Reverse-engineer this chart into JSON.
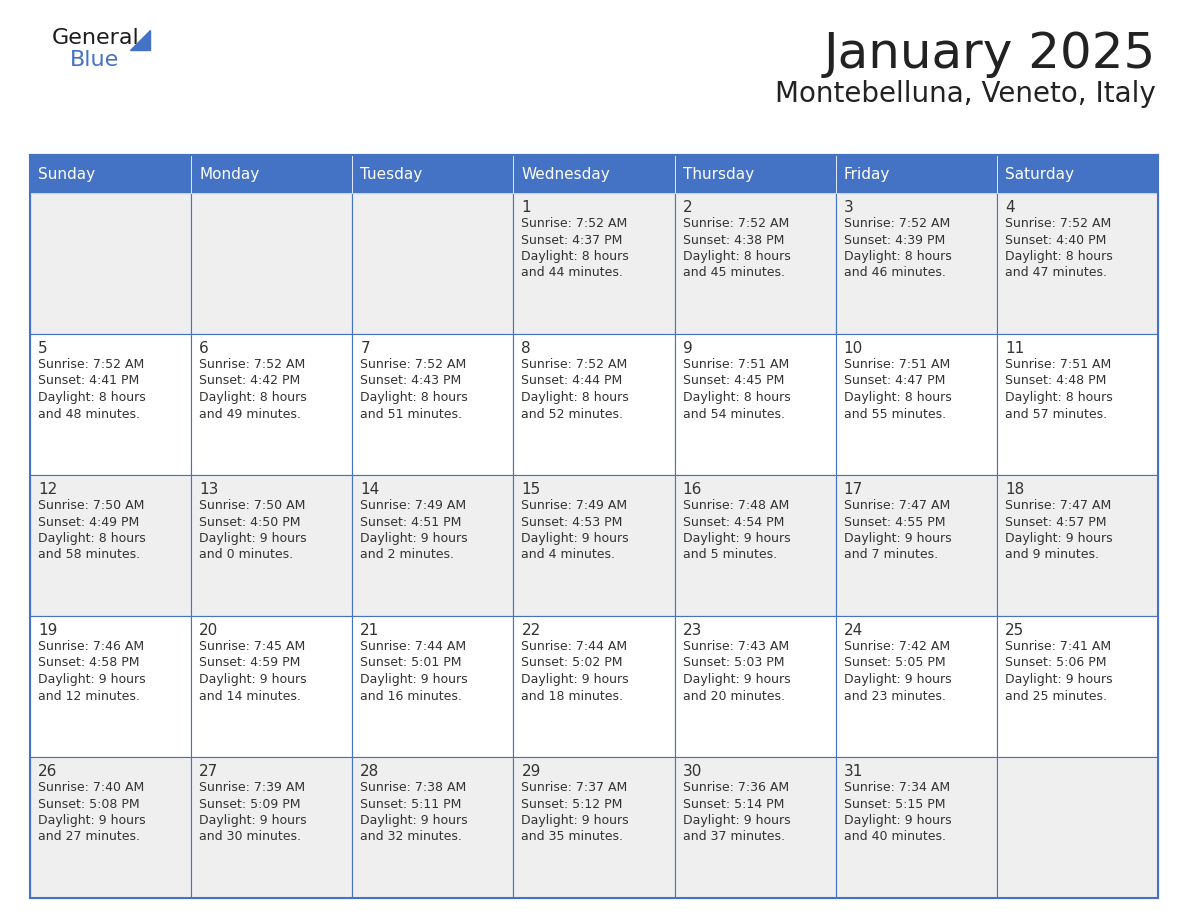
{
  "title": "January 2025",
  "subtitle": "Montebelluna, Veneto, Italy",
  "days_of_week": [
    "Sunday",
    "Monday",
    "Tuesday",
    "Wednesday",
    "Thursday",
    "Friday",
    "Saturday"
  ],
  "header_bg_color": "#4472C4",
  "header_text_color": "#FFFFFF",
  "cell_bg_color_even": "#EFEFEF",
  "cell_bg_color_odd": "#FFFFFF",
  "grid_line_color": "#4472C4",
  "title_color": "#222222",
  "subtitle_color": "#222222",
  "text_color": "#333333",
  "day_number_color": "#333333",
  "calendar_data": [
    {
      "day": 1,
      "col": 3,
      "row": 0,
      "sunrise": "7:52 AM",
      "sunset": "4:37 PM",
      "daylight_hours": 8,
      "daylight_minutes": 44
    },
    {
      "day": 2,
      "col": 4,
      "row": 0,
      "sunrise": "7:52 AM",
      "sunset": "4:38 PM",
      "daylight_hours": 8,
      "daylight_minutes": 45
    },
    {
      "day": 3,
      "col": 5,
      "row": 0,
      "sunrise": "7:52 AM",
      "sunset": "4:39 PM",
      "daylight_hours": 8,
      "daylight_minutes": 46
    },
    {
      "day": 4,
      "col": 6,
      "row": 0,
      "sunrise": "7:52 AM",
      "sunset": "4:40 PM",
      "daylight_hours": 8,
      "daylight_minutes": 47
    },
    {
      "day": 5,
      "col": 0,
      "row": 1,
      "sunrise": "7:52 AM",
      "sunset": "4:41 PM",
      "daylight_hours": 8,
      "daylight_minutes": 48
    },
    {
      "day": 6,
      "col": 1,
      "row": 1,
      "sunrise": "7:52 AM",
      "sunset": "4:42 PM",
      "daylight_hours": 8,
      "daylight_minutes": 49
    },
    {
      "day": 7,
      "col": 2,
      "row": 1,
      "sunrise": "7:52 AM",
      "sunset": "4:43 PM",
      "daylight_hours": 8,
      "daylight_minutes": 51
    },
    {
      "day": 8,
      "col": 3,
      "row": 1,
      "sunrise": "7:52 AM",
      "sunset": "4:44 PM",
      "daylight_hours": 8,
      "daylight_minutes": 52
    },
    {
      "day": 9,
      "col": 4,
      "row": 1,
      "sunrise": "7:51 AM",
      "sunset": "4:45 PM",
      "daylight_hours": 8,
      "daylight_minutes": 54
    },
    {
      "day": 10,
      "col": 5,
      "row": 1,
      "sunrise": "7:51 AM",
      "sunset": "4:47 PM",
      "daylight_hours": 8,
      "daylight_minutes": 55
    },
    {
      "day": 11,
      "col": 6,
      "row": 1,
      "sunrise": "7:51 AM",
      "sunset": "4:48 PM",
      "daylight_hours": 8,
      "daylight_minutes": 57
    },
    {
      "day": 12,
      "col": 0,
      "row": 2,
      "sunrise": "7:50 AM",
      "sunset": "4:49 PM",
      "daylight_hours": 8,
      "daylight_minutes": 58
    },
    {
      "day": 13,
      "col": 1,
      "row": 2,
      "sunrise": "7:50 AM",
      "sunset": "4:50 PM",
      "daylight_hours": 9,
      "daylight_minutes": 0
    },
    {
      "day": 14,
      "col": 2,
      "row": 2,
      "sunrise": "7:49 AM",
      "sunset": "4:51 PM",
      "daylight_hours": 9,
      "daylight_minutes": 2
    },
    {
      "day": 15,
      "col": 3,
      "row": 2,
      "sunrise": "7:49 AM",
      "sunset": "4:53 PM",
      "daylight_hours": 9,
      "daylight_minutes": 4
    },
    {
      "day": 16,
      "col": 4,
      "row": 2,
      "sunrise": "7:48 AM",
      "sunset": "4:54 PM",
      "daylight_hours": 9,
      "daylight_minutes": 5
    },
    {
      "day": 17,
      "col": 5,
      "row": 2,
      "sunrise": "7:47 AM",
      "sunset": "4:55 PM",
      "daylight_hours": 9,
      "daylight_minutes": 7
    },
    {
      "day": 18,
      "col": 6,
      "row": 2,
      "sunrise": "7:47 AM",
      "sunset": "4:57 PM",
      "daylight_hours": 9,
      "daylight_minutes": 9
    },
    {
      "day": 19,
      "col": 0,
      "row": 3,
      "sunrise": "7:46 AM",
      "sunset": "4:58 PM",
      "daylight_hours": 9,
      "daylight_minutes": 12
    },
    {
      "day": 20,
      "col": 1,
      "row": 3,
      "sunrise": "7:45 AM",
      "sunset": "4:59 PM",
      "daylight_hours": 9,
      "daylight_minutes": 14
    },
    {
      "day": 21,
      "col": 2,
      "row": 3,
      "sunrise": "7:44 AM",
      "sunset": "5:01 PM",
      "daylight_hours": 9,
      "daylight_minutes": 16
    },
    {
      "day": 22,
      "col": 3,
      "row": 3,
      "sunrise": "7:44 AM",
      "sunset": "5:02 PM",
      "daylight_hours": 9,
      "daylight_minutes": 18
    },
    {
      "day": 23,
      "col": 4,
      "row": 3,
      "sunrise": "7:43 AM",
      "sunset": "5:03 PM",
      "daylight_hours": 9,
      "daylight_minutes": 20
    },
    {
      "day": 24,
      "col": 5,
      "row": 3,
      "sunrise": "7:42 AM",
      "sunset": "5:05 PM",
      "daylight_hours": 9,
      "daylight_minutes": 23
    },
    {
      "day": 25,
      "col": 6,
      "row": 3,
      "sunrise": "7:41 AM",
      "sunset": "5:06 PM",
      "daylight_hours": 9,
      "daylight_minutes": 25
    },
    {
      "day": 26,
      "col": 0,
      "row": 4,
      "sunrise": "7:40 AM",
      "sunset": "5:08 PM",
      "daylight_hours": 9,
      "daylight_minutes": 27
    },
    {
      "day": 27,
      "col": 1,
      "row": 4,
      "sunrise": "7:39 AM",
      "sunset": "5:09 PM",
      "daylight_hours": 9,
      "daylight_minutes": 30
    },
    {
      "day": 28,
      "col": 2,
      "row": 4,
      "sunrise": "7:38 AM",
      "sunset": "5:11 PM",
      "daylight_hours": 9,
      "daylight_minutes": 32
    },
    {
      "day": 29,
      "col": 3,
      "row": 4,
      "sunrise": "7:37 AM",
      "sunset": "5:12 PM",
      "daylight_hours": 9,
      "daylight_minutes": 35
    },
    {
      "day": 30,
      "col": 4,
      "row": 4,
      "sunrise": "7:36 AM",
      "sunset": "5:14 PM",
      "daylight_hours": 9,
      "daylight_minutes": 37
    },
    {
      "day": 31,
      "col": 5,
      "row": 4,
      "sunrise": "7:34 AM",
      "sunset": "5:15 PM",
      "daylight_hours": 9,
      "daylight_minutes": 40
    }
  ]
}
